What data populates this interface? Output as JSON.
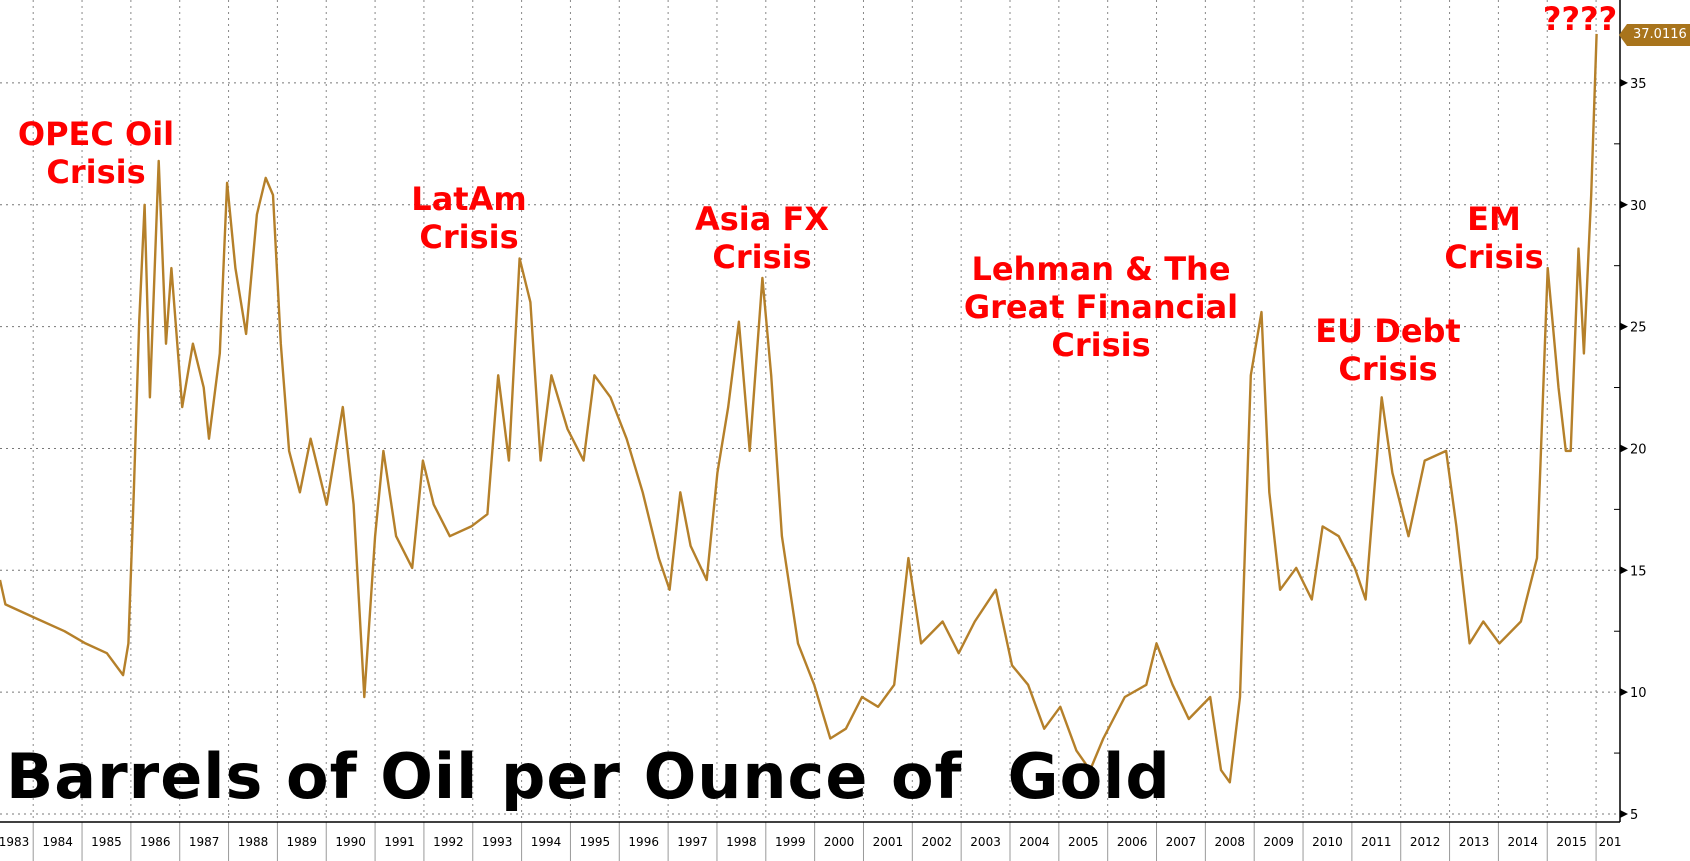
{
  "chart_data": {
    "type": "line",
    "title": "Barrels of Oil per Ounce of  Gold",
    "xlabel": "",
    "ylabel": "",
    "xlim": [
      1983.32,
      2016.48
    ],
    "ylim": [
      5,
      37.5
    ],
    "grid": true,
    "y_ticks": [
      "5",
      "10",
      "15",
      "20",
      "25",
      "30",
      "35"
    ],
    "y_tick_values": [
      5,
      10,
      15,
      20,
      25,
      30,
      35
    ],
    "x_ticks": [
      "1983",
      "1984",
      "1985",
      "1986",
      "1987",
      "1988",
      "1989",
      "1990",
      "1991",
      "1992",
      "1993",
      "1994",
      "1995",
      "1996",
      "1997",
      "1998",
      "1999",
      "2000",
      "2001",
      "2002",
      "2003",
      "2004",
      "2005",
      "2006",
      "2007",
      "2008",
      "2009",
      "2010",
      "2011",
      "2012",
      "2013",
      "2014",
      "2015",
      "201"
    ],
    "last_value_label": "37.0116",
    "series": [
      {
        "name": "Barrels of Oil per Ounce of Gold",
        "color": "#b5802a",
        "x": [
          1983.32,
          1983.43,
          1983.98,
          1984.64,
          1985.07,
          1985.51,
          1985.84,
          1985.95,
          1986.06,
          1986.17,
          1986.28,
          1986.39,
          1986.57,
          1986.72,
          1986.83,
          1987.05,
          1987.27,
          1987.49,
          1987.6,
          1987.82,
          1987.97,
          1988.14,
          1988.36,
          1988.58,
          1988.76,
          1988.91,
          1989.07,
          1989.24,
          1989.46,
          1989.68,
          1990.01,
          1990.34,
          1990.56,
          1990.78,
          1991.0,
          1991.17,
          1991.43,
          1991.76,
          1991.98,
          1992.2,
          1992.53,
          1992.97,
          1993.3,
          1993.52,
          1993.74,
          1993.96,
          1994.18,
          1994.39,
          1994.61,
          1994.94,
          1995.27,
          1995.49,
          1995.82,
          1996.15,
          1996.48,
          1996.81,
          1997.03,
          1997.25,
          1997.46,
          1997.79,
          1998.01,
          1998.23,
          1998.45,
          1998.67,
          1998.93,
          1999.11,
          1999.33,
          1999.66,
          1999.99,
          2000.32,
          2000.64,
          2000.97,
          2001.3,
          2001.63,
          2001.92,
          2002.18,
          2002.62,
          2002.95,
          2003.28,
          2003.71,
          2004.04,
          2004.37,
          2004.7,
          2005.03,
          2005.36,
          2005.64,
          2005.91,
          2006.35,
          2006.79,
          2007.0,
          2007.33,
          2007.66,
          2008.1,
          2008.32,
          2008.5,
          2008.71,
          2008.93,
          2009.15,
          2009.31,
          2009.53,
          2009.86,
          2010.18,
          2010.4,
          2010.73,
          2011.06,
          2011.28,
          2011.61,
          2011.83,
          2012.16,
          2012.49,
          2012.93,
          2013.14,
          2013.41,
          2013.69,
          2014.02,
          2014.46,
          2014.79,
          2015.01,
          2015.23,
          2015.38,
          2015.48,
          2015.64,
          2015.75,
          2015.9,
          2016.01
        ],
        "values": [
          14.6,
          13.6,
          13.1,
          12.5,
          12.0,
          11.6,
          10.7,
          12.0,
          18.2,
          25.2,
          30.0,
          22.1,
          31.8,
          24.3,
          27.4,
          21.7,
          24.3,
          22.5,
          20.4,
          23.9,
          30.9,
          27.4,
          24.7,
          29.6,
          31.1,
          30.4,
          24.3,
          19.9,
          18.2,
          20.4,
          17.7,
          21.7,
          17.7,
          9.8,
          16.4,
          19.9,
          16.4,
          15.1,
          19.5,
          17.7,
          16.4,
          16.8,
          17.3,
          23.0,
          19.5,
          27.8,
          26.0,
          19.5,
          23.0,
          20.8,
          19.5,
          23.0,
          22.1,
          20.4,
          18.2,
          15.5,
          14.2,
          18.2,
          16.0,
          14.6,
          19.0,
          21.7,
          25.2,
          19.9,
          27.0,
          23.0,
          16.4,
          12.0,
          10.3,
          8.1,
          8.5,
          9.8,
          9.4,
          10.3,
          15.5,
          12.0,
          12.9,
          11.6,
          12.9,
          14.2,
          11.1,
          10.3,
          8.5,
          9.4,
          7.6,
          6.8,
          8.1,
          9.8,
          10.3,
          12.0,
          10.3,
          8.9,
          9.8,
          6.8,
          6.3,
          9.8,
          23.0,
          25.6,
          18.2,
          14.2,
          15.1,
          13.8,
          16.8,
          16.4,
          15.1,
          13.8,
          22.1,
          19.0,
          16.4,
          19.5,
          19.9,
          16.8,
          12.0,
          12.9,
          12.0,
          12.9,
          15.5,
          27.4,
          22.5,
          19.9,
          19.9,
          28.2,
          23.9,
          30.4,
          37.0116
        ]
      }
    ],
    "annotations": [
      {
        "lines": [
          "OPEC Oil",
          "Crisis"
        ]
      },
      {
        "lines": [
          "LatAm",
          "Crisis"
        ]
      },
      {
        "lines": [
          "Asia FX",
          "Crisis"
        ]
      },
      {
        "lines": [
          "Lehman & The",
          "Great Financial",
          "Crisis"
        ]
      },
      {
        "lines": [
          "EU Debt",
          "Crisis"
        ]
      },
      {
        "lines": [
          "EM",
          "Crisis"
        ]
      },
      {
        "lines": [
          "????"
        ]
      }
    ]
  }
}
